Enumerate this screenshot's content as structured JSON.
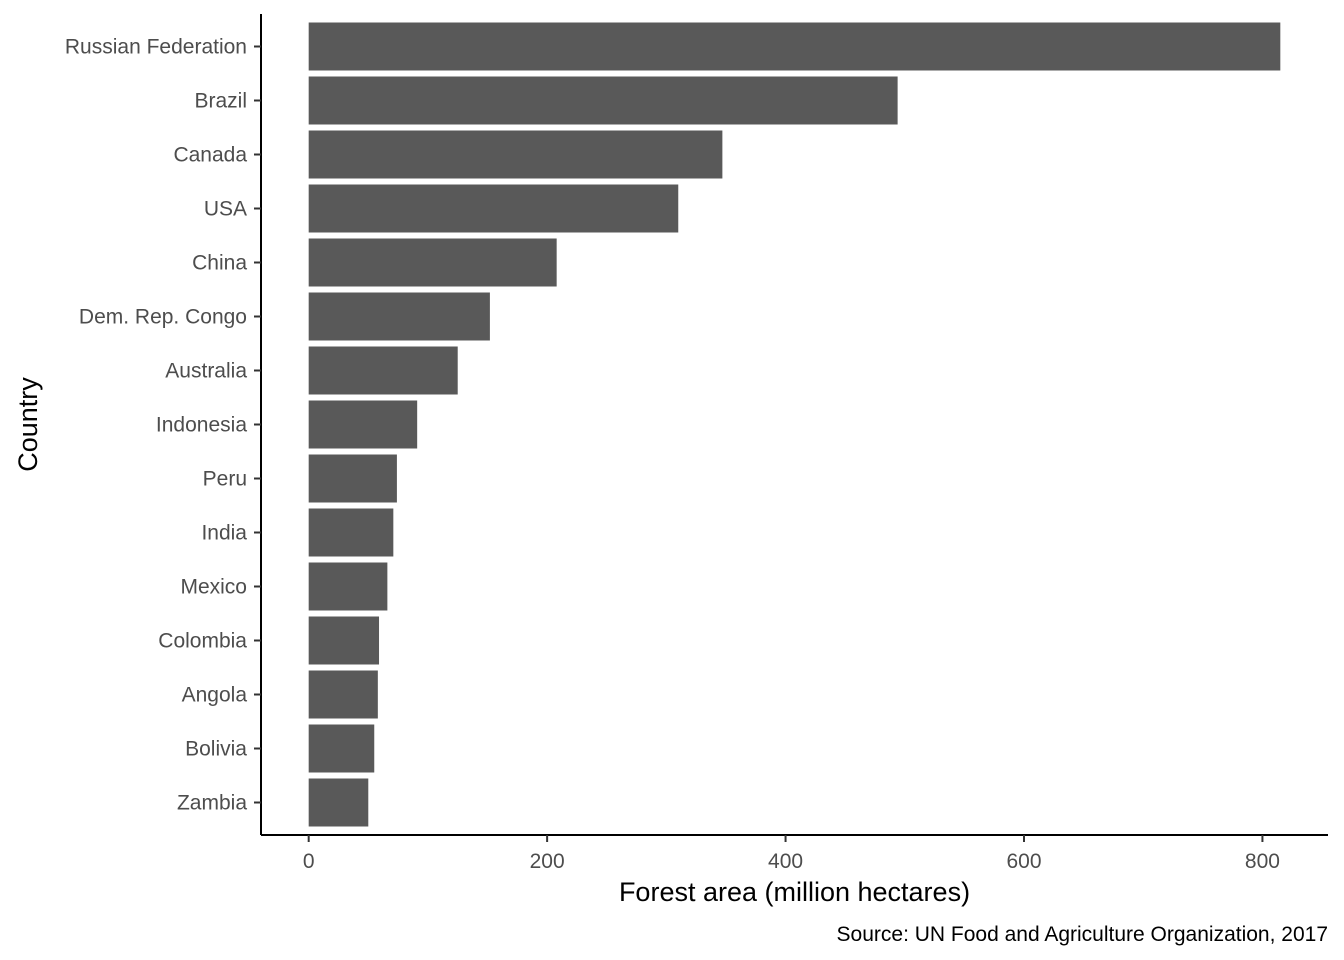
{
  "chart_data": {
    "type": "bar",
    "orientation": "horizontal",
    "categories": [
      "Russian Federation",
      "Brazil",
      "Canada",
      "USA",
      "China",
      "Dem. Rep. Congo",
      "Australia",
      "Indonesia",
      "Peru",
      "India",
      "Mexico",
      "Colombia",
      "Angola",
      "Bolivia",
      "Zambia"
    ],
    "values": [
      815,
      494,
      347,
      310,
      208,
      152,
      125,
      91,
      74,
      71,
      66,
      59,
      58,
      55,
      50
    ],
    "xlabel": "Forest area (million hectares)",
    "ylabel": "Country",
    "xlim": [
      -40,
      855
    ],
    "xticks": [
      0,
      200,
      400,
      600,
      800
    ],
    "xtick_labels": [
      "0",
      "200",
      "400",
      "600",
      "800"
    ],
    "caption": "Source: UN Food and Agriculture Organization, 2017",
    "grid": false,
    "legend": "none",
    "bar_color": "#595959"
  }
}
